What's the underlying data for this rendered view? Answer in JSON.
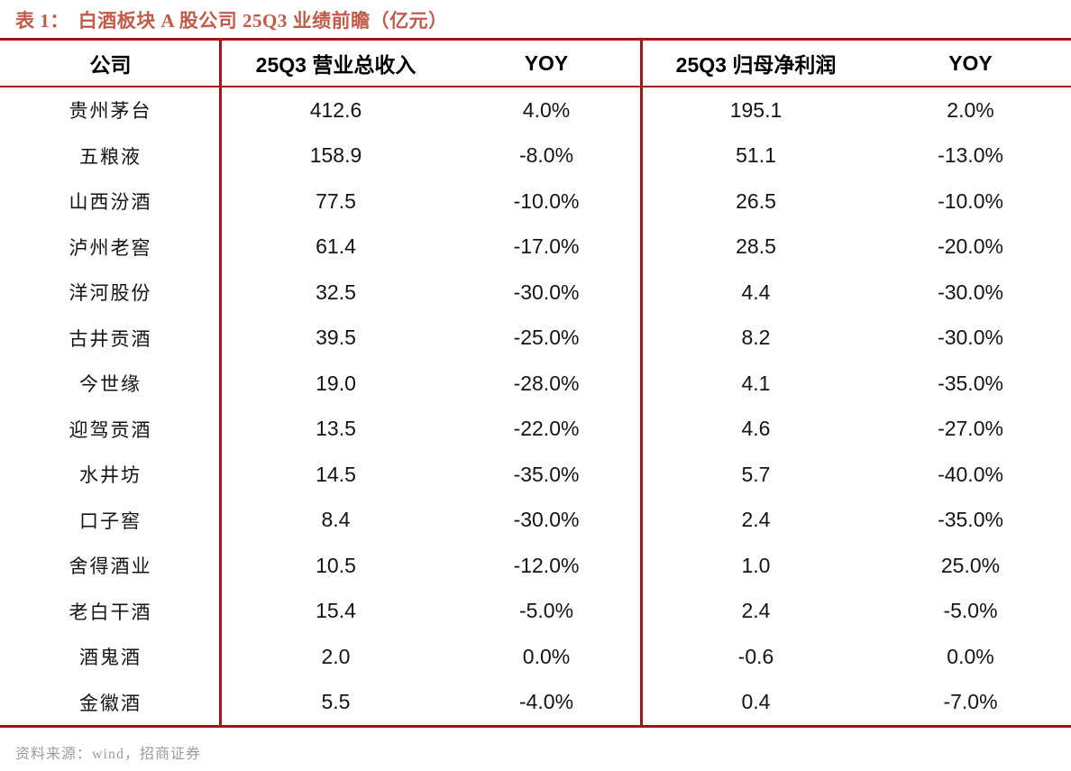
{
  "caption": {
    "prefix": "表 1：",
    "title": "白酒板块 A 股公司 25Q3 业绩前瞻（亿元）"
  },
  "table": {
    "columns": [
      "公司",
      "25Q3 营业总收入",
      "YOY",
      "25Q3 归母净利润",
      "YOY"
    ],
    "rows": [
      {
        "company": "贵州茅台",
        "revenue": "412.6",
        "revenue_yoy": "4.0%",
        "profit": "195.1",
        "profit_yoy": "2.0%"
      },
      {
        "company": "五粮液",
        "revenue": "158.9",
        "revenue_yoy": "-8.0%",
        "profit": "51.1",
        "profit_yoy": "-13.0%"
      },
      {
        "company": "山西汾酒",
        "revenue": "77.5",
        "revenue_yoy": "-10.0%",
        "profit": "26.5",
        "profit_yoy": "-10.0%"
      },
      {
        "company": "泸州老窖",
        "revenue": "61.4",
        "revenue_yoy": "-17.0%",
        "profit": "28.5",
        "profit_yoy": "-20.0%"
      },
      {
        "company": "洋河股份",
        "revenue": "32.5",
        "revenue_yoy": "-30.0%",
        "profit": "4.4",
        "profit_yoy": "-30.0%"
      },
      {
        "company": "古井贡酒",
        "revenue": "39.5",
        "revenue_yoy": "-25.0%",
        "profit": "8.2",
        "profit_yoy": "-30.0%"
      },
      {
        "company": "今世缘",
        "revenue": "19.0",
        "revenue_yoy": "-28.0%",
        "profit": "4.1",
        "profit_yoy": "-35.0%"
      },
      {
        "company": "迎驾贡酒",
        "revenue": "13.5",
        "revenue_yoy": "-22.0%",
        "profit": "4.6",
        "profit_yoy": "-27.0%"
      },
      {
        "company": "水井坊",
        "revenue": "14.5",
        "revenue_yoy": "-35.0%",
        "profit": "5.7",
        "profit_yoy": "-40.0%"
      },
      {
        "company": "口子窖",
        "revenue": "8.4",
        "revenue_yoy": "-30.0%",
        "profit": "2.4",
        "profit_yoy": "-35.0%"
      },
      {
        "company": "舍得酒业",
        "revenue": "10.5",
        "revenue_yoy": "-12.0%",
        "profit": "1.0",
        "profit_yoy": "25.0%"
      },
      {
        "company": "老白干酒",
        "revenue": "15.4",
        "revenue_yoy": "-5.0%",
        "profit": "2.4",
        "profit_yoy": "-5.0%"
      },
      {
        "company": "酒鬼酒",
        "revenue": "2.0",
        "revenue_yoy": "0.0%",
        "profit": "-0.6",
        "profit_yoy": "0.0%"
      },
      {
        "company": "金徽酒",
        "revenue": "5.5",
        "revenue_yoy": "-4.0%",
        "profit": "0.4",
        "profit_yoy": "-7.0%"
      }
    ]
  },
  "footer": {
    "source": "资料来源：wind，招商证券"
  },
  "colors": {
    "line_red": "#a81216",
    "caption": "#c25b49",
    "text": "#141414",
    "source_gray": "#9c9c9c"
  }
}
